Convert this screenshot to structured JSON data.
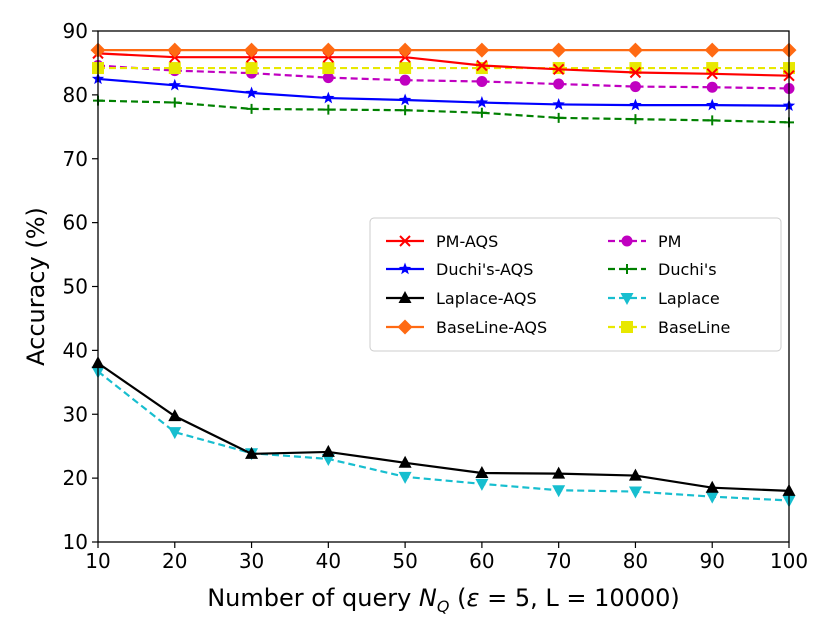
{
  "chart_data": {
    "type": "line",
    "title": "",
    "xlabel": "Number of query N_Q (ε = 5, L = 10000)",
    "xlabel_parts": {
      "prefix": "Number of query ",
      "var": "N",
      "sub": "Q",
      "suffix_open": " (",
      "eps": "ε",
      "suffix": " = 5, L = 10000)"
    },
    "ylabel": "Accuracy (%)",
    "xlim": [
      10,
      100
    ],
    "ylim": [
      10,
      90
    ],
    "xticks": [
      10,
      20,
      30,
      40,
      50,
      60,
      70,
      80,
      90,
      100
    ],
    "yticks": [
      10,
      20,
      30,
      40,
      50,
      60,
      70,
      80,
      90
    ],
    "grid": false,
    "legend_placement": "center-right",
    "x": [
      10,
      20,
      30,
      40,
      50,
      60,
      70,
      80,
      90,
      100
    ],
    "series": [
      {
        "name": "PM-AQS",
        "color": "#ff0000",
        "dash": "solid",
        "marker": "x",
        "values": [
          86.5,
          85.9,
          85.9,
          85.9,
          85.9,
          84.6,
          84.0,
          83.5,
          83.3,
          83.0
        ]
      },
      {
        "name": "Duchi's-AQS",
        "color": "#0000ff",
        "dash": "solid",
        "marker": "star",
        "values": [
          82.5,
          81.5,
          80.3,
          79.5,
          79.2,
          78.8,
          78.5,
          78.4,
          78.4,
          78.3
        ]
      },
      {
        "name": "Laplace-AQS",
        "color": "#000000",
        "dash": "solid",
        "marker": "triangle-up",
        "values": [
          38.0,
          29.7,
          23.8,
          24.1,
          22.4,
          20.8,
          20.7,
          20.4,
          18.5,
          18.0
        ]
      },
      {
        "name": "BaseLine-AQS",
        "color": "#ff6a13",
        "dash": "solid",
        "marker": "diamond",
        "values": [
          87.0,
          87.0,
          87.0,
          87.0,
          87.0,
          87.0,
          87.0,
          87.0,
          87.0,
          87.0
        ]
      },
      {
        "name": "PM",
        "color": "#c000c0",
        "dash": "dashed",
        "marker": "circle",
        "values": [
          84.6,
          83.8,
          83.4,
          82.7,
          82.3,
          82.1,
          81.7,
          81.3,
          81.2,
          81.0
        ]
      },
      {
        "name": "Duchi's",
        "color": "#008000",
        "dash": "dashed",
        "marker": "plus",
        "values": [
          79.1,
          78.8,
          77.8,
          77.7,
          77.6,
          77.2,
          76.4,
          76.2,
          76.0,
          75.7
        ]
      },
      {
        "name": "Laplace",
        "color": "#17becf",
        "dash": "dashed",
        "marker": "triangle-down",
        "values": [
          36.7,
          27.2,
          23.9,
          23.0,
          20.2,
          19.1,
          18.1,
          17.9,
          17.1,
          16.5
        ]
      },
      {
        "name": "BaseLine",
        "color": "#e8e800",
        "dash": "dashed",
        "marker": "square",
        "values": [
          84.2,
          84.2,
          84.2,
          84.2,
          84.2,
          84.2,
          84.2,
          84.2,
          84.2,
          84.2
        ]
      }
    ]
  }
}
